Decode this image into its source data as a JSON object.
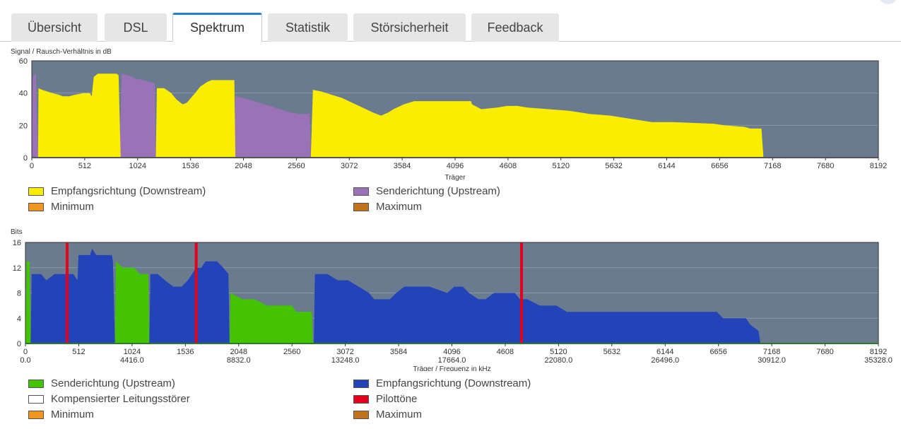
{
  "tabs": [
    {
      "label": "Übersicht",
      "active": false
    },
    {
      "label": "DSL",
      "active": false
    },
    {
      "label": "Spektrum",
      "active": true
    },
    {
      "label": "Statistik",
      "active": false
    },
    {
      "label": "Störsicherheit",
      "active": false
    },
    {
      "label": "Feedback",
      "active": false
    }
  ],
  "colors": {
    "plot_bg": "#6a7b8f",
    "downstream_yellow": "#fbed00",
    "upstream_purple": "#9a72b8",
    "upstream_green": "#44c400",
    "downstream_blue": "#2244b8",
    "pilot_red": "#e3001b",
    "minimum": "#f0961e",
    "maximum": "#c07318"
  },
  "chart_data": [
    {
      "type": "area",
      "title": "Signal / Rausch-Verhältnis in dB",
      "xlabel": "Träger",
      "ylabel": "",
      "xlim": [
        0,
        8192
      ],
      "ylim": [
        0,
        60
      ],
      "yticks": [
        0,
        20,
        40,
        60
      ],
      "xticks": [
        0,
        512,
        1024,
        1536,
        2048,
        2560,
        3072,
        3584,
        4096,
        4608,
        5120,
        5632,
        6144,
        6656,
        7168,
        7680,
        8192
      ],
      "series": [
        {
          "name": "upstream",
          "color": "upstream_purple",
          "points": [
            [
              0,
              0
            ],
            [
              10,
              50
            ],
            [
              40,
              52
            ],
            [
              60,
              0
            ],
            [
              850,
              0
            ],
            [
              870,
              52
            ],
            [
              930,
              51
            ],
            [
              1000,
              49
            ],
            [
              1080,
              48
            ],
            [
              1190,
              46
            ],
            [
              1200,
              0
            ],
            [
              1960,
              0
            ],
            [
              1970,
              38
            ],
            [
              2100,
              36
            ],
            [
              2250,
              33
            ],
            [
              2400,
              30
            ],
            [
              2500,
              28
            ],
            [
              2600,
              27
            ],
            [
              2690,
              27
            ],
            [
              2700,
              0
            ]
          ]
        },
        {
          "name": "downstream",
          "color": "downstream_yellow",
          "points": [
            [
              60,
              0
            ],
            [
              65,
              43
            ],
            [
              100,
              42
            ],
            [
              200,
              40
            ],
            [
              260,
              39
            ],
            [
              300,
              38
            ],
            [
              360,
              38
            ],
            [
              420,
              39
            ],
            [
              500,
              40
            ],
            [
              560,
              40
            ],
            [
              580,
              38
            ],
            [
              600,
              50
            ],
            [
              640,
              52
            ],
            [
              820,
              52
            ],
            [
              840,
              51
            ],
            [
              860,
              0
            ],
            [
              1200,
              0
            ],
            [
              1210,
              43
            ],
            [
              1280,
              43
            ],
            [
              1350,
              40
            ],
            [
              1400,
              36
            ],
            [
              1460,
              33
            ],
            [
              1500,
              34
            ],
            [
              1540,
              37
            ],
            [
              1580,
              40
            ],
            [
              1630,
              44
            ],
            [
              1700,
              47
            ],
            [
              1740,
              48
            ],
            [
              1960,
              48
            ],
            [
              1970,
              0
            ],
            [
              2700,
              0
            ],
            [
              2720,
              42
            ],
            [
              2800,
              41
            ],
            [
              2900,
              39
            ],
            [
              3000,
              37
            ],
            [
              3100,
              34
            ],
            [
              3200,
              31
            ],
            [
              3300,
              28
            ],
            [
              3380,
              26
            ],
            [
              3450,
              28
            ],
            [
              3500,
              30
            ],
            [
              3600,
              33
            ],
            [
              3700,
              35
            ],
            [
              4000,
              35
            ],
            [
              4100,
              35
            ],
            [
              4250,
              35
            ],
            [
              4260,
              33
            ],
            [
              4350,
              30
            ],
            [
              4500,
              31
            ],
            [
              4600,
              32
            ],
            [
              4700,
              32
            ],
            [
              4800,
              31
            ],
            [
              5000,
              30
            ],
            [
              5200,
              29
            ],
            [
              5400,
              27
            ],
            [
              5600,
              26
            ],
            [
              5800,
              24
            ],
            [
              6000,
              22
            ],
            [
              6200,
              22
            ],
            [
              6600,
              21
            ],
            [
              6700,
              20
            ],
            [
              6900,
              19
            ],
            [
              6950,
              18
            ],
            [
              7060,
              18
            ],
            [
              7080,
              0
            ]
          ]
        }
      ],
      "legend": [
        {
          "label": "Empfangsrichtung (Downstream)",
          "color": "downstream_yellow"
        },
        {
          "label": "Senderichtung (Upstream)",
          "color": "upstream_purple"
        },
        {
          "label": "Minimum",
          "color": "minimum"
        },
        {
          "label": "Maximum",
          "color": "maximum"
        }
      ]
    },
    {
      "type": "area",
      "title": "Bits",
      "xlabel": "Träger / Frequenz in kHz",
      "ylabel": "",
      "xlim": [
        0,
        8192
      ],
      "ylim": [
        0,
        16
      ],
      "yticks": [
        0,
        4,
        8,
        12,
        16
      ],
      "xticks": [
        0,
        512,
        1024,
        1536,
        2048,
        2560,
        3072,
        3584,
        4096,
        4608,
        5120,
        5632,
        6144,
        6656,
        7168,
        7680,
        8192
      ],
      "xfreq": {
        "0": "0.0",
        "1024": "4416.0",
        "2048": "8832.0",
        "3072": "13248.0",
        "4096": "17664.0",
        "5120": "22080.0",
        "6144": "26496.0",
        "7168": "30912.0",
        "8192": "35328.0"
      },
      "series": [
        {
          "name": "upstream",
          "color": "upstream_green",
          "points": [
            [
              0,
              0
            ],
            [
              10,
              13
            ],
            [
              40,
              13
            ],
            [
              50,
              0
            ],
            [
              860,
              0
            ],
            [
              870,
              13
            ],
            [
              930,
              12
            ],
            [
              1040,
              12
            ],
            [
              1100,
              11
            ],
            [
              1180,
              11
            ],
            [
              1190,
              0
            ],
            [
              1960,
              0
            ],
            [
              1970,
              8
            ],
            [
              2080,
              7
            ],
            [
              2200,
              7
            ],
            [
              2320,
              6
            ],
            [
              2560,
              6
            ],
            [
              2600,
              5
            ],
            [
              2750,
              5
            ],
            [
              2760,
              0
            ]
          ]
        },
        {
          "name": "downstream",
          "color": "downstream_blue",
          "points": [
            [
              50,
              0
            ],
            [
              60,
              11
            ],
            [
              150,
              11
            ],
            [
              200,
              10
            ],
            [
              280,
              11
            ],
            [
              360,
              11
            ],
            [
              460,
              11
            ],
            [
              500,
              10
            ],
            [
              510,
              14
            ],
            [
              620,
              14
            ],
            [
              640,
              15
            ],
            [
              680,
              14
            ],
            [
              830,
              14
            ],
            [
              840,
              13
            ],
            [
              860,
              0
            ],
            [
              1190,
              0
            ],
            [
              1200,
              11
            ],
            [
              1270,
              11
            ],
            [
              1340,
              10
            ],
            [
              1420,
              9
            ],
            [
              1500,
              9
            ],
            [
              1560,
              10
            ],
            [
              1640,
              12
            ],
            [
              1690,
              12
            ],
            [
              1730,
              13
            ],
            [
              1840,
              13
            ],
            [
              1900,
              12
            ],
            [
              1950,
              11
            ],
            [
              1960,
              0
            ],
            [
              2770,
              0
            ],
            [
              2780,
              11
            ],
            [
              2900,
              11
            ],
            [
              3000,
              10
            ],
            [
              3100,
              10
            ],
            [
              3200,
              9
            ],
            [
              3300,
              8
            ],
            [
              3350,
              7
            ],
            [
              3500,
              7
            ],
            [
              3560,
              8
            ],
            [
              3640,
              9
            ],
            [
              3880,
              9
            ],
            [
              4050,
              8
            ],
            [
              4120,
              9
            ],
            [
              4200,
              9
            ],
            [
              4260,
              8
            ],
            [
              4350,
              7
            ],
            [
              4420,
              7
            ],
            [
              4500,
              8
            ],
            [
              4700,
              8
            ],
            [
              4750,
              7
            ],
            [
              4820,
              7
            ],
            [
              4940,
              6
            ],
            [
              5100,
              6
            ],
            [
              5200,
              5
            ],
            [
              6640,
              5
            ],
            [
              6700,
              4
            ],
            [
              6920,
              4
            ],
            [
              6960,
              3
            ],
            [
              7040,
              2
            ],
            [
              7060,
              0
            ]
          ]
        }
      ],
      "pilot_tones": [
        400,
        1640,
        4765
      ],
      "legend": [
        {
          "label": "Senderichtung (Upstream)",
          "color": "upstream_green"
        },
        {
          "label": "Empfangsrichtung (Downstream)",
          "color": "downstream_blue"
        },
        {
          "label": "Kompensierter Leitungsstörer",
          "color": "#ffffff"
        },
        {
          "label": "Pilottöne",
          "color": "pilot_red"
        },
        {
          "label": "Minimum",
          "color": "minimum"
        },
        {
          "label": "Maximum",
          "color": "maximum"
        }
      ]
    }
  ]
}
